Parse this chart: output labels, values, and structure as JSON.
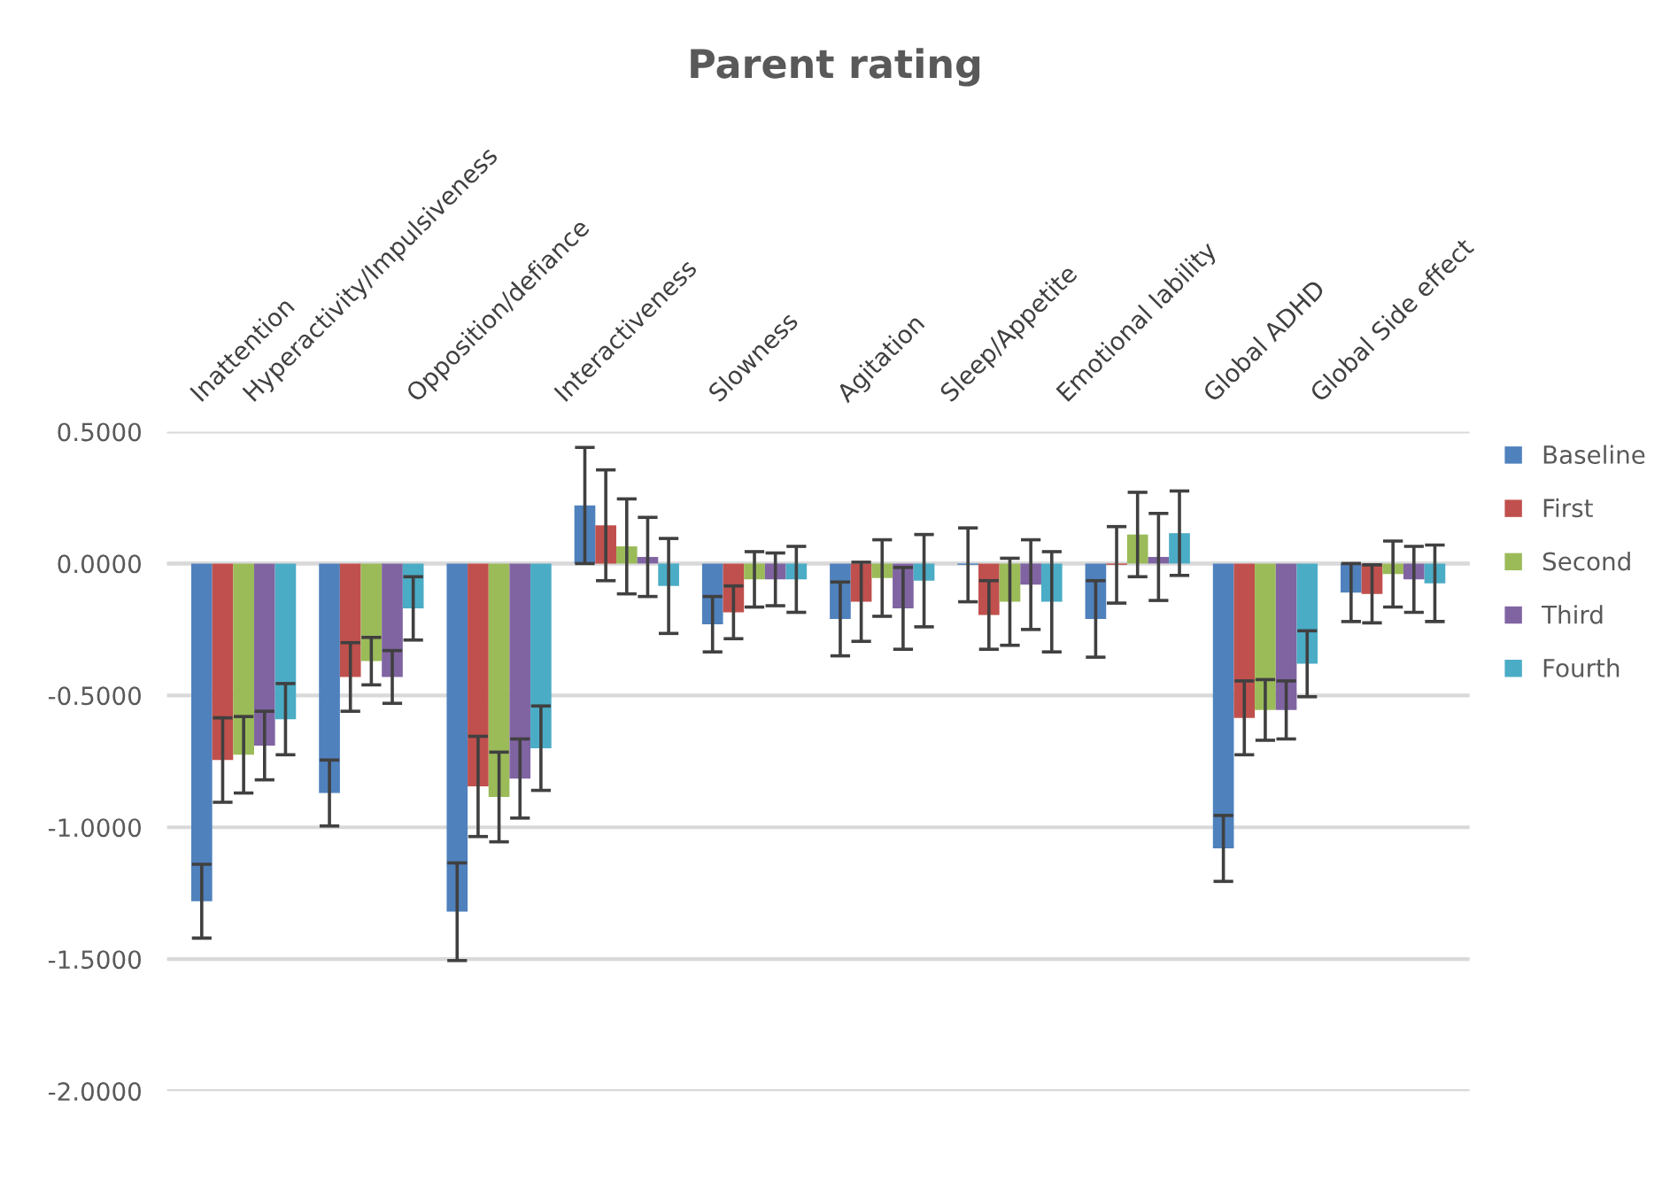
{
  "chart_data": {
    "type": "bar",
    "title": "Parent rating",
    "categories": [
      "Inattention",
      "Hyperactivity/Impulsiveness",
      "Opposition/defiance",
      "Interactiveness",
      "Slowness",
      "Agitation",
      "Sleep/Appetite",
      "Emotional lability",
      "Global ADHD",
      "Global Side effect"
    ],
    "series": [
      {
        "name": "Baseline",
        "color": "#4f81bd",
        "values": [
          -1.28,
          -0.87,
          -1.32,
          0.22,
          -0.23,
          -0.21,
          -0.005,
          -0.21,
          -1.08,
          -0.11
        ],
        "errors": [
          0.14,
          0.125,
          0.185,
          0.22,
          0.105,
          0.14,
          0.14,
          0.145,
          0.125,
          0.11
        ]
      },
      {
        "name": "First",
        "color": "#c0504d",
        "values": [
          -0.745,
          -0.43,
          -0.845,
          0.145,
          -0.185,
          -0.145,
          -0.195,
          -0.005,
          -0.585,
          -0.115
        ],
        "errors": [
          0.16,
          0.13,
          0.19,
          0.21,
          0.1,
          0.15,
          0.13,
          0.145,
          0.14,
          0.11
        ]
      },
      {
        "name": "Second",
        "color": "#9bbb59",
        "values": [
          -0.725,
          -0.37,
          -0.885,
          0.065,
          -0.06,
          -0.055,
          -0.145,
          0.11,
          -0.555,
          -0.04
        ],
        "errors": [
          0.145,
          0.09,
          0.17,
          0.18,
          0.105,
          0.145,
          0.165,
          0.16,
          0.115,
          0.125
        ]
      },
      {
        "name": "Third",
        "color": "#8064a2",
        "values": [
          -0.69,
          -0.43,
          -0.815,
          0.025,
          -0.06,
          -0.17,
          -0.08,
          0.025,
          -0.555,
          -0.06
        ],
        "errors": [
          0.13,
          0.1,
          0.15,
          0.15,
          0.1,
          0.155,
          0.17,
          0.165,
          0.11,
          0.125
        ]
      },
      {
        "name": "Fourth",
        "color": "#4bacc6",
        "values": [
          -0.59,
          -0.17,
          -0.7,
          -0.085,
          -0.06,
          -0.065,
          -0.145,
          0.115,
          -0.38,
          -0.075
        ],
        "errors": [
          0.135,
          0.12,
          0.16,
          0.18,
          0.125,
          0.175,
          0.19,
          0.16,
          0.125,
          0.145
        ]
      }
    ],
    "ylim": [
      -2,
      0.5
    ],
    "yticks": [
      {
        "value": 0.5,
        "label": "0.5000"
      },
      {
        "value": 0,
        "label": "0.0000"
      },
      {
        "value": -0.5,
        "label": "-0.5000"
      },
      {
        "value": -1,
        "label": "-1.0000"
      },
      {
        "value": -1.5,
        "label": "-1.5000"
      },
      {
        "value": -2,
        "label": "-2.0000"
      }
    ],
    "grid": "y",
    "legend": "right"
  }
}
